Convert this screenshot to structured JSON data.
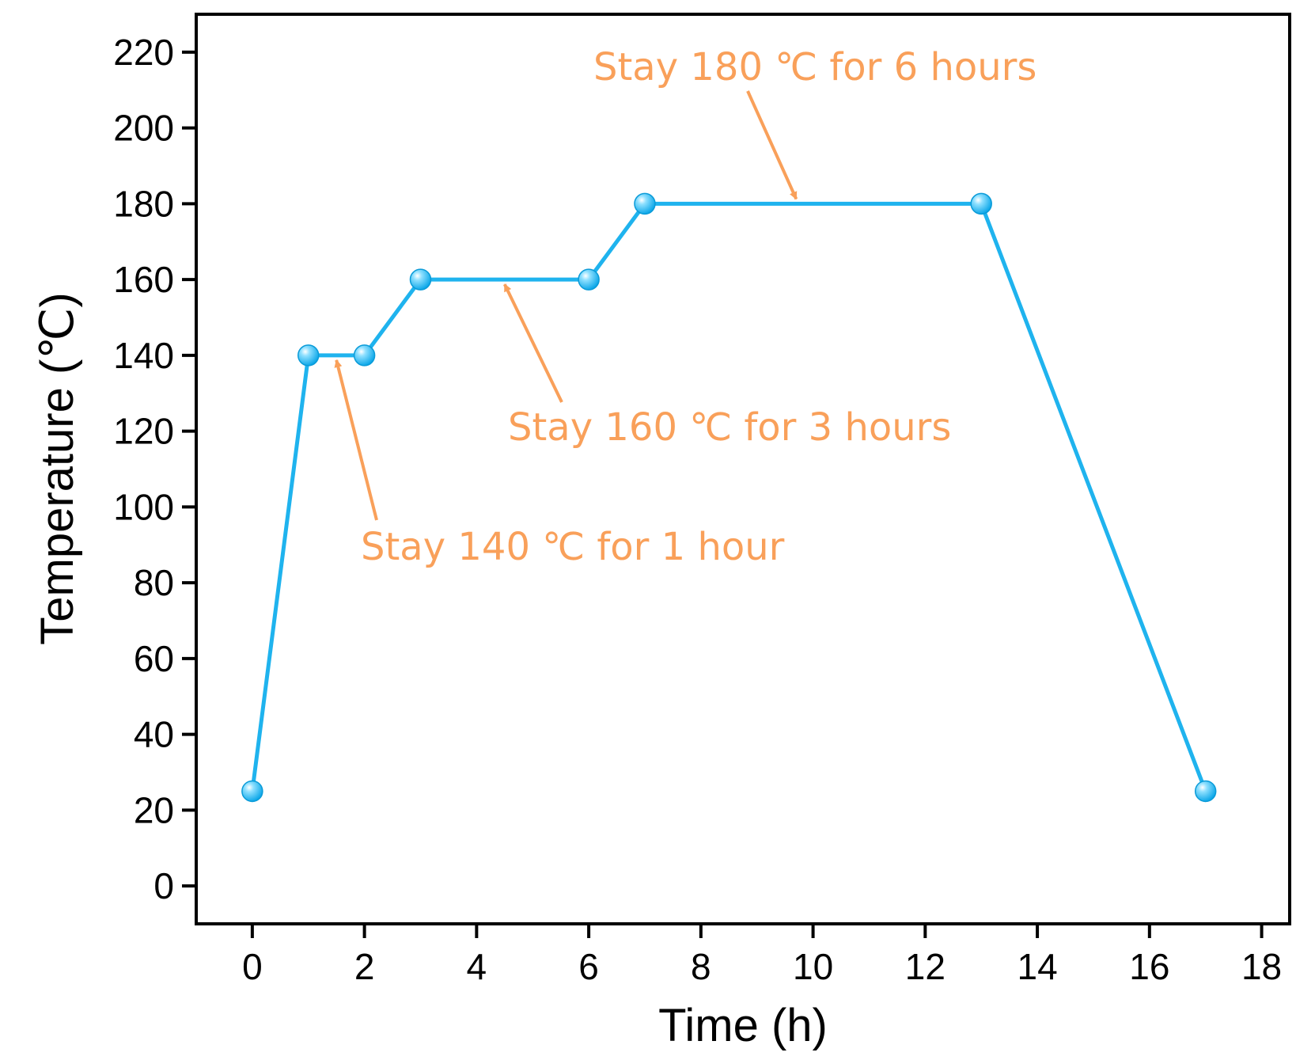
{
  "chart_data": {
    "type": "line",
    "title": "",
    "xlabel": "Time (h)",
    "ylabel": "Temperature (℃)",
    "xlim": [
      -1,
      18.5
    ],
    "ylim": [
      -10,
      230
    ],
    "x_ticks": [
      0,
      2,
      4,
      6,
      8,
      10,
      12,
      14,
      16,
      18
    ],
    "y_ticks": [
      0,
      20,
      40,
      60,
      80,
      100,
      120,
      140,
      160,
      180,
      200,
      220
    ],
    "grid": false,
    "legend": "none",
    "series": [
      {
        "x": [
          0,
          1,
          2,
          3,
          6,
          7,
          13,
          17
        ],
        "y": [
          25,
          140,
          140,
          160,
          160,
          180,
          180,
          25
        ],
        "color": "#1fb3ee"
      }
    ],
    "annotations": [
      {
        "text": "Stay 140 ℃ for 1 hour",
        "arrow_to": [
          1.5,
          140
        ]
      },
      {
        "text": "Stay 160 ℃ for 3 hours",
        "arrow_to": [
          4.5,
          160
        ]
      },
      {
        "text": "Stay 180 ℃ for 6 hours",
        "arrow_to": [
          9.7,
          180
        ]
      }
    ],
    "annotation_color": "#f9a05a"
  }
}
